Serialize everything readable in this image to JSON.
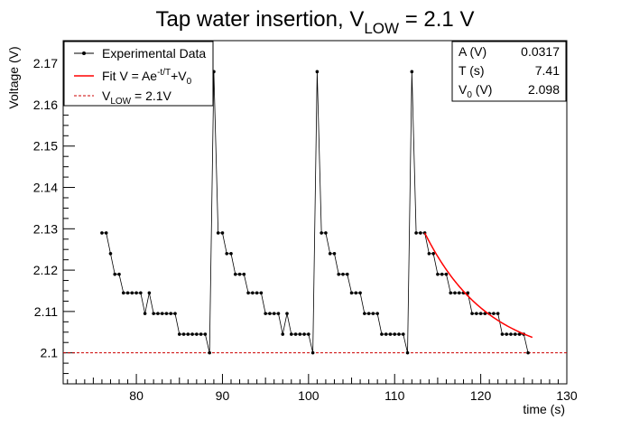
{
  "chart_data": {
    "type": "line",
    "title": "Tap water insertion, V",
    "title_sub": "LOW",
    "title_tail": " = 2.1 V",
    "xlabel": "time (s)",
    "ylabel": "Voltage (V)",
    "xlim": [
      71.5,
      130
    ],
    "ylim": [
      2.0925,
      2.1755
    ],
    "x_ticks": [
      80,
      90,
      100,
      110,
      120,
      130
    ],
    "y_ticks": [
      2.1,
      2.11,
      2.12,
      2.13,
      2.14,
      2.15,
      2.16,
      2.17
    ],
    "grid": false,
    "legend_position": "top-left",
    "series": [
      {
        "name": "Experimental Data",
        "color": "#000000",
        "points": [
          [
            76.0,
            2.129
          ],
          [
            76.5,
            2.129
          ],
          [
            77.0,
            2.124
          ],
          [
            77.5,
            2.119
          ],
          [
            78.0,
            2.119
          ],
          [
            78.5,
            2.1145
          ],
          [
            79.0,
            2.1145
          ],
          [
            79.5,
            2.1145
          ],
          [
            80.0,
            2.1145
          ],
          [
            80.5,
            2.1145
          ],
          [
            81.0,
            2.1095
          ],
          [
            81.5,
            2.1145
          ],
          [
            82.0,
            2.1095
          ],
          [
            82.5,
            2.1095
          ],
          [
            83.0,
            2.1095
          ],
          [
            83.5,
            2.1095
          ],
          [
            84.0,
            2.1095
          ],
          [
            84.5,
            2.1095
          ],
          [
            85.0,
            2.1045
          ],
          [
            85.5,
            2.1045
          ],
          [
            86.0,
            2.1045
          ],
          [
            86.5,
            2.1045
          ],
          [
            87.0,
            2.1045
          ],
          [
            87.5,
            2.1045
          ],
          [
            88.0,
            2.1045
          ],
          [
            88.5,
            2.1
          ],
          [
            89.0,
            2.168
          ],
          [
            89.5,
            2.129
          ],
          [
            90.0,
            2.129
          ],
          [
            90.5,
            2.124
          ],
          [
            91.0,
            2.124
          ],
          [
            91.5,
            2.119
          ],
          [
            92.0,
            2.119
          ],
          [
            92.5,
            2.119
          ],
          [
            93.0,
            2.1145
          ],
          [
            93.5,
            2.1145
          ],
          [
            94.0,
            2.1145
          ],
          [
            94.5,
            2.1145
          ],
          [
            95.0,
            2.1095
          ],
          [
            95.5,
            2.1095
          ],
          [
            96.0,
            2.1095
          ],
          [
            96.5,
            2.1095
          ],
          [
            97.0,
            2.1045
          ],
          [
            97.5,
            2.1095
          ],
          [
            98.0,
            2.1045
          ],
          [
            98.5,
            2.1045
          ],
          [
            99.0,
            2.1045
          ],
          [
            99.5,
            2.1045
          ],
          [
            100.0,
            2.1045
          ],
          [
            100.5,
            2.1
          ],
          [
            101.0,
            2.168
          ],
          [
            101.5,
            2.129
          ],
          [
            102.0,
            2.129
          ],
          [
            102.5,
            2.124
          ],
          [
            103.0,
            2.124
          ],
          [
            103.5,
            2.119
          ],
          [
            104.0,
            2.119
          ],
          [
            104.5,
            2.119
          ],
          [
            105.0,
            2.1145
          ],
          [
            105.5,
            2.1145
          ],
          [
            106.0,
            2.1145
          ],
          [
            106.5,
            2.1095
          ],
          [
            107.0,
            2.1095
          ],
          [
            107.5,
            2.1095
          ],
          [
            108.0,
            2.1095
          ],
          [
            108.5,
            2.1045
          ],
          [
            109.0,
            2.1045
          ],
          [
            109.5,
            2.1045
          ],
          [
            110.0,
            2.1045
          ],
          [
            110.5,
            2.1045
          ],
          [
            111.0,
            2.1045
          ],
          [
            111.5,
            2.1
          ],
          [
            112.0,
            2.168
          ],
          [
            112.5,
            2.129
          ],
          [
            113.0,
            2.129
          ],
          [
            113.5,
            2.129
          ],
          [
            114.0,
            2.124
          ],
          [
            114.5,
            2.124
          ],
          [
            115.0,
            2.119
          ],
          [
            115.5,
            2.119
          ],
          [
            116.0,
            2.119
          ],
          [
            116.5,
            2.1145
          ],
          [
            117.0,
            2.1145
          ],
          [
            117.5,
            2.1145
          ],
          [
            118.0,
            2.1145
          ],
          [
            118.5,
            2.1145
          ],
          [
            119.0,
            2.1095
          ],
          [
            119.5,
            2.1095
          ],
          [
            120.0,
            2.1095
          ],
          [
            120.5,
            2.1095
          ],
          [
            121.0,
            2.1095
          ],
          [
            121.5,
            2.1095
          ],
          [
            122.0,
            2.1095
          ],
          [
            122.5,
            2.1045
          ],
          [
            123.0,
            2.1045
          ],
          [
            123.5,
            2.1045
          ],
          [
            124.0,
            2.1045
          ],
          [
            124.5,
            2.1045
          ],
          [
            125.0,
            2.1045
          ],
          [
            125.5,
            2.1
          ]
        ]
      },
      {
        "name": "Fit V = Ae^-t/T+V0",
        "color": "#ff0000",
        "fit": {
          "A": 0.0317,
          "T": 7.41,
          "V0": 2.098,
          "t_start": 113.5,
          "t_end": 126.0,
          "amp_at_start": 2.129
        }
      },
      {
        "name": "VLOW = 2.1V",
        "color": "#cc0000",
        "y": 2.1,
        "style": "dashed"
      }
    ],
    "legend": [
      {
        "parts": [
          "Experimental Data"
        ]
      },
      {
        "parts": [
          "Fit V = Ae",
          "-t/T",
          "+V",
          "0"
        ]
      },
      {
        "parts": [
          "V",
          "LOW",
          " = 2.1V"
        ]
      }
    ],
    "stats": [
      {
        "label": "A (V)",
        "value": "0.0317"
      },
      {
        "label": "T (s)",
        "value": "7.41"
      },
      {
        "label": "V",
        "label_sub": "0",
        "label_tail": " (V)",
        "value": "2.098"
      }
    ]
  }
}
